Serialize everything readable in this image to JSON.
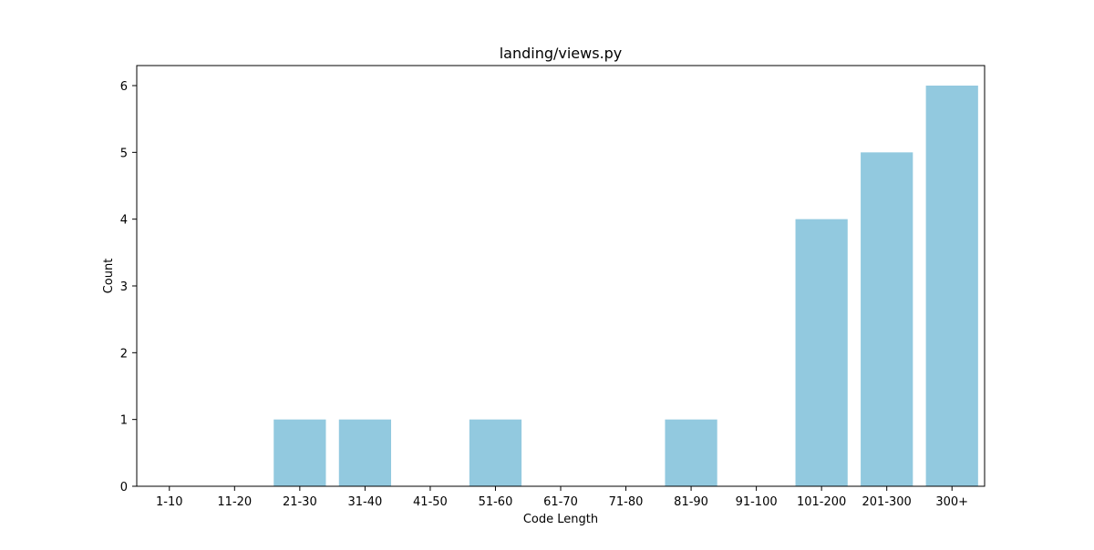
{
  "chart_data": {
    "type": "bar",
    "title": "landing/views.py",
    "xlabel": "Code Length",
    "ylabel": "Count",
    "categories": [
      "1-10",
      "11-20",
      "21-30",
      "31-40",
      "41-50",
      "51-60",
      "61-70",
      "71-80",
      "81-90",
      "91-100",
      "101-200",
      "201-300",
      "300+"
    ],
    "values": [
      0,
      0,
      1,
      1,
      0,
      1,
      0,
      0,
      1,
      0,
      4,
      5,
      6
    ],
    "yticks": [
      0,
      1,
      2,
      3,
      4,
      5,
      6
    ],
    "ylim": [
      0,
      6.3
    ],
    "grid": false,
    "legend": false,
    "bar_color": "#92c9df",
    "axis_color": "#000000"
  }
}
